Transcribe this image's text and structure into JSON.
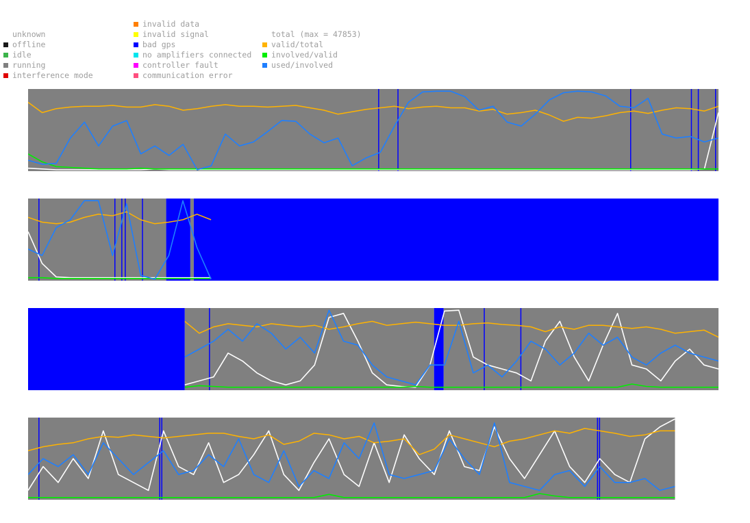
{
  "legend": {
    "status": [
      {
        "label": "unknown",
        "color": ""
      },
      {
        "label": "offline",
        "color": "#1a1a1a"
      },
      {
        "label": "idle",
        "color": "#3cb44b"
      },
      {
        "label": "running",
        "color": "#808080"
      },
      {
        "label": "interference mode",
        "color": "#e00000"
      }
    ],
    "errors": [
      {
        "label": "invalid data",
        "color": "#ff7f00"
      },
      {
        "label": "invalid signal",
        "color": "#ffff00"
      },
      {
        "label": "bad gps",
        "color": "#0000ff"
      },
      {
        "label": "no amplifiers connected",
        "color": "#00e5ee"
      },
      {
        "label": "controller fault",
        "color": "#ff00ff"
      },
      {
        "label": "communication error",
        "color": "#ff4f7f"
      }
    ],
    "ratios": [
      {
        "label": "total (max = 47853)",
        "color": ""
      },
      {
        "label": "valid/total",
        "color": "#ffb300"
      },
      {
        "label": "involved/valid",
        "color": "#00ee00"
      },
      {
        "label": "used/involved",
        "color": "#1e7fff"
      }
    ]
  },
  "chart_data": {
    "type": "line",
    "title": "",
    "total_max": 47853,
    "ylim": [
      0,
      1
    ],
    "series": [
      {
        "name": "total (max = 47853)",
        "color": "#ffffff"
      },
      {
        "name": "valid/total",
        "color": "#ffb300"
      },
      {
        "name": "involved/valid",
        "color": "#00ee00"
      },
      {
        "name": "used/involved",
        "color": "#1e7fff"
      }
    ],
    "strips": [
      {
        "index": 1,
        "status_bands": [
          {
            "from": 0,
            "to": 1,
            "state": "running"
          }
        ],
        "bad_gps_markers": [
          0.507,
          0.535,
          0.872,
          0.96,
          0.97,
          0.995
        ],
        "total": [
          0.02,
          0.01,
          0.0,
          0.0,
          0.0,
          0.0,
          0.0,
          0.0,
          0.0,
          0.01,
          0.0,
          0.0,
          0.0,
          0.0,
          0.0,
          0.0,
          0.0,
          0.0,
          0.0,
          0.0,
          0.0,
          0.0,
          0.0,
          0.0,
          0.0,
          0.0,
          0.0,
          0.0,
          0.0,
          0.0,
          0.0,
          0.0,
          0.0,
          0.0,
          0.0,
          0.0,
          0.0,
          0.0,
          0.0,
          0.0,
          0.0,
          0.0,
          0.0,
          0.0,
          0.0,
          0.0,
          0.0,
          0.0,
          0.01,
          0.72
        ],
        "valid_total": [
          0.85,
          0.72,
          0.77,
          0.79,
          0.8,
          0.8,
          0.81,
          0.79,
          0.79,
          0.82,
          0.8,
          0.75,
          0.77,
          0.8,
          0.82,
          0.8,
          0.8,
          0.79,
          0.8,
          0.81,
          0.78,
          0.75,
          0.7,
          0.73,
          0.76,
          0.78,
          0.8,
          0.77,
          0.79,
          0.8,
          0.78,
          0.78,
          0.74,
          0.76,
          0.7,
          0.72,
          0.75,
          0.69,
          0.61,
          0.66,
          0.65,
          0.68,
          0.72,
          0.74,
          0.71,
          0.75,
          0.78,
          0.77,
          0.74,
          0.8
        ],
        "involved_valid": [
          0.2,
          0.1,
          0.04,
          0.03,
          0.02,
          0.01,
          0.01,
          0.01,
          0.02,
          0.01,
          0.01,
          0.01,
          0.01,
          0.01,
          0.01,
          0.01,
          0.01,
          0.01,
          0.01,
          0.01,
          0.01,
          0.01,
          0.01,
          0.01,
          0.01,
          0.01,
          0.01,
          0.01,
          0.01,
          0.01,
          0.01,
          0.01,
          0.01,
          0.01,
          0.01,
          0.01,
          0.01,
          0.01,
          0.01,
          0.01,
          0.01,
          0.01,
          0.01,
          0.01,
          0.01,
          0.01,
          0.01,
          0.01,
          0.01,
          0.01
        ],
        "used_involved": [
          0.12,
          0.07,
          0.08,
          0.4,
          0.6,
          0.3,
          0.55,
          0.62,
          0.2,
          0.3,
          0.18,
          0.32,
          0.0,
          0.05,
          0.45,
          0.3,
          0.35,
          0.48,
          0.62,
          0.61,
          0.45,
          0.34,
          0.4,
          0.05,
          0.15,
          0.22,
          0.55,
          0.85,
          0.98,
          0.99,
          0.99,
          0.92,
          0.75,
          0.8,
          0.6,
          0.55,
          0.7,
          0.88,
          0.97,
          0.99,
          0.98,
          0.93,
          0.8,
          0.78,
          0.9,
          0.45,
          0.4,
          0.42,
          0.35,
          0.4
        ]
      },
      {
        "index": 2,
        "status_bands": [
          {
            "from": 0,
            "to": 0.2,
            "state": "running"
          },
          {
            "from": 0.2,
            "to": 0.235,
            "state": "bad gps"
          },
          {
            "from": 0.235,
            "to": 0.24,
            "state": "running"
          },
          {
            "from": 0.24,
            "to": 1,
            "state": "bad gps"
          }
        ],
        "bad_gps_markers": [
          0.015,
          0.125,
          0.135,
          0.14,
          0.165
        ],
        "total": [
          0.6,
          0.2,
          0.03,
          0.02,
          0.02,
          0.02,
          0.02,
          0.02,
          0.02,
          0.02,
          0.02,
          0.02,
          0.02,
          0.02
        ],
        "valid_total": [
          0.78,
          0.72,
          0.7,
          0.72,
          0.78,
          0.82,
          0.8,
          0.85,
          0.75,
          0.7,
          0.72,
          0.75,
          0.82,
          0.75
        ],
        "involved_valid": [
          0.02,
          0.02,
          0.01,
          0.01,
          0.01,
          0.01,
          0.01,
          0.01,
          0.01,
          0.01,
          0.01,
          0.01,
          0.01,
          0.01
        ],
        "used_involved": [
          0.38,
          0.3,
          0.65,
          0.75,
          0.99,
          0.99,
          0.3,
          0.95,
          0.05,
          0.0,
          0.3,
          0.99,
          0.4,
          0.0
        ]
      },
      {
        "index": 3,
        "status_bands": [
          {
            "from": 0,
            "to": 0.227,
            "state": "bad gps"
          },
          {
            "from": 0.227,
            "to": 0.588,
            "state": "running"
          },
          {
            "from": 0.588,
            "to": 0.602,
            "state": "bad gps"
          },
          {
            "from": 0.602,
            "to": 1,
            "state": "running"
          }
        ],
        "bad_gps_markers": [
          0.262,
          0.66,
          0.713
        ],
        "total": [
          0.05,
          0.1,
          0.15,
          0.45,
          0.35,
          0.2,
          0.1,
          0.05,
          0.1,
          0.3,
          0.9,
          0.95,
          0.6,
          0.2,
          0.05,
          0.03,
          0.02,
          0.3,
          0.98,
          0.99,
          0.4,
          0.3,
          0.25,
          0.2,
          0.1,
          0.6,
          0.85,
          0.4,
          0.1,
          0.55,
          0.95,
          0.3,
          0.25,
          0.1,
          0.35,
          0.5,
          0.3,
          0.25
        ],
        "valid_total": [
          0.85,
          0.7,
          0.78,
          0.82,
          0.8,
          0.78,
          0.82,
          0.8,
          0.78,
          0.8,
          0.75,
          0.78,
          0.82,
          0.85,
          0.8,
          0.82,
          0.84,
          0.82,
          0.8,
          0.8,
          0.82,
          0.83,
          0.81,
          0.8,
          0.78,
          0.72,
          0.78,
          0.75,
          0.8,
          0.8,
          0.78,
          0.76,
          0.78,
          0.75,
          0.7,
          0.72,
          0.74,
          0.65
        ],
        "involved_valid": [
          0.02,
          0.04,
          0.03,
          0.02,
          0.02,
          0.02,
          0.02,
          0.02,
          0.02,
          0.02,
          0.02,
          0.02,
          0.02,
          0.02,
          0.02,
          0.02,
          0.03,
          0.02,
          0.02,
          0.02,
          0.02,
          0.02,
          0.02,
          0.02,
          0.02,
          0.02,
          0.02,
          0.02,
          0.02,
          0.02,
          0.02,
          0.06,
          0.03,
          0.02,
          0.02,
          0.02,
          0.02,
          0.02
        ],
        "used_involved": [
          0.4,
          0.5,
          0.6,
          0.75,
          0.6,
          0.82,
          0.7,
          0.5,
          0.65,
          0.45,
          0.99,
          0.6,
          0.55,
          0.3,
          0.15,
          0.1,
          0.05,
          0.3,
          0.3,
          0.85,
          0.2,
          0.3,
          0.15,
          0.35,
          0.6,
          0.5,
          0.3,
          0.45,
          0.7,
          0.55,
          0.65,
          0.4,
          0.3,
          0.45,
          0.55,
          0.45,
          0.4,
          0.35
        ]
      },
      {
        "index": 4,
        "status_bands": [
          {
            "from": 0,
            "to": 0.937,
            "state": "running"
          }
        ],
        "bad_gps_markers": [
          0.015,
          0.19,
          0.193,
          0.824,
          0.827
        ],
        "total": [
          0.1,
          0.4,
          0.2,
          0.5,
          0.25,
          0.85,
          0.3,
          0.2,
          0.1,
          0.85,
          0.4,
          0.3,
          0.7,
          0.2,
          0.3,
          0.55,
          0.85,
          0.3,
          0.1,
          0.45,
          0.75,
          0.3,
          0.15,
          0.7,
          0.2,
          0.8,
          0.5,
          0.3,
          0.85,
          0.4,
          0.35,
          0.9,
          0.5,
          0.25,
          0.55,
          0.85,
          0.4,
          0.2,
          0.5,
          0.3,
          0.2,
          0.75,
          0.9,
          1.0
        ],
        "valid_total": [
          0.6,
          0.65,
          0.68,
          0.7,
          0.75,
          0.78,
          0.77,
          0.8,
          0.78,
          0.76,
          0.78,
          0.8,
          0.82,
          0.82,
          0.78,
          0.75,
          0.8,
          0.68,
          0.72,
          0.82,
          0.8,
          0.75,
          0.78,
          0.7,
          0.72,
          0.75,
          0.55,
          0.62,
          0.8,
          0.75,
          0.7,
          0.65,
          0.72,
          0.75,
          0.8,
          0.85,
          0.82,
          0.88,
          0.85,
          0.82,
          0.78,
          0.8,
          0.85,
          0.85
        ],
        "involved_valid": [
          0.01,
          0.01,
          0.01,
          0.01,
          0.01,
          0.01,
          0.01,
          0.01,
          0.01,
          0.01,
          0.01,
          0.01,
          0.01,
          0.01,
          0.01,
          0.01,
          0.01,
          0.01,
          0.01,
          0.01,
          0.05,
          0.01,
          0.01,
          0.01,
          0.01,
          0.01,
          0.01,
          0.01,
          0.01,
          0.01,
          0.01,
          0.01,
          0.01,
          0.01,
          0.06,
          0.03,
          0.01,
          0.01,
          0.01,
          0.01,
          0.01,
          0.01,
          0.01,
          0.01
        ],
        "used_involved": [
          0.3,
          0.5,
          0.4,
          0.55,
          0.3,
          0.7,
          0.5,
          0.3,
          0.45,
          0.6,
          0.3,
          0.35,
          0.55,
          0.4,
          0.75,
          0.3,
          0.2,
          0.6,
          0.15,
          0.35,
          0.25,
          0.7,
          0.5,
          0.95,
          0.3,
          0.25,
          0.3,
          0.35,
          0.75,
          0.5,
          0.3,
          0.95,
          0.2,
          0.15,
          0.1,
          0.3,
          0.35,
          0.15,
          0.4,
          0.2,
          0.2,
          0.25,
          0.1,
          0.15
        ]
      }
    ]
  }
}
